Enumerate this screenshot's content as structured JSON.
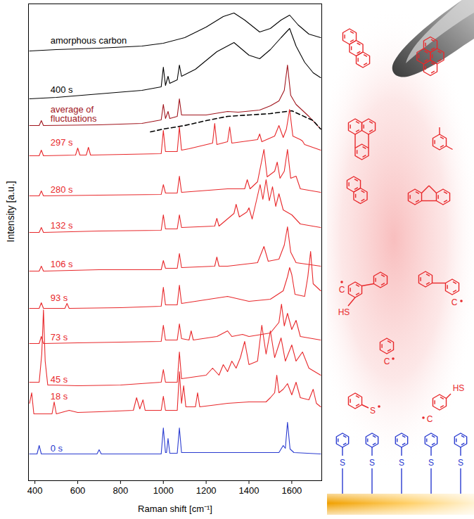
{
  "chart_data": {
    "type": "line",
    "xlabel": "Raman shift [cm⁻¹]",
    "ylabel": "Intensity [a.u.]",
    "xlim": [
      370,
      1740
    ],
    "xticks": [
      400,
      600,
      800,
      1000,
      1200,
      1400,
      1600
    ],
    "ylim": [
      0,
      678
    ],
    "yticks": [],
    "tick_labels": "x",
    "grid": false,
    "series": [
      {
        "name": "amorphous carbon",
        "color": "#000000",
        "x": [
          375,
          500,
          700,
          900,
          1000,
          1100,
          1200,
          1280,
          1330,
          1380,
          1450,
          1500,
          1550,
          1590,
          1630,
          1680,
          1735
        ],
        "values": [
          611,
          613,
          615,
          618,
          622,
          630,
          645,
          660,
          665,
          655,
          638,
          643,
          655,
          662,
          648,
          635,
          630
        ]
      },
      {
        "name": "400 s",
        "color": "#000000",
        "x": [
          375,
          500,
          700,
          900,
          990,
          1000,
          1010,
          1022,
          1030,
          1065,
          1075,
          1085,
          1150,
          1250,
          1330,
          1400,
          1450,
          1500,
          1550,
          1590,
          1620,
          1660,
          1700,
          1735
        ],
        "values": [
          543,
          545,
          550,
          555,
          560,
          588,
          562,
          575,
          565,
          570,
          591,
          575,
          585,
          610,
          623,
          605,
          600,
          613,
          630,
          643,
          618,
          595,
          580,
          573
        ]
      },
      {
        "name": "average of fluctuations",
        "color": "#a0141c",
        "x": [
          375,
          420,
          430,
          440,
          700,
          900,
          990,
          1000,
          1010,
          1022,
          1030,
          1065,
          1075,
          1085,
          1200,
          1300,
          1350,
          1450,
          1500,
          1540,
          1565,
          1580,
          1595,
          1620,
          1680,
          1735
        ],
        "values": [
          505,
          505,
          512,
          505,
          506,
          508,
          513,
          535,
          515,
          525,
          515,
          518,
          543,
          520,
          520,
          525,
          524,
          527,
          533,
          540,
          555,
          591,
          548,
          535,
          518,
          500
        ]
      },
      {
        "color": "#000000",
        "line_style": "dashed",
        "x": [
          940,
          1000,
          1100,
          1200,
          1300,
          1400,
          1500,
          1600,
          1700,
          1735
        ],
        "values": [
          496,
          500,
          505,
          512,
          518,
          520,
          522,
          526,
          512,
          500
        ]
      },
      {
        "name": "297 s",
        "color": "#e8282b",
        "x": [
          375,
          420,
          430,
          440,
          590,
          600,
          610,
          640,
          650,
          660,
          990,
          1000,
          1010,
          1065,
          1075,
          1085,
          1120,
          1230,
          1240,
          1250,
          1300,
          1310,
          1320,
          1440,
          1450,
          1460,
          1520,
          1540,
          1560,
          1575,
          1590,
          1605,
          1640,
          1650,
          1660,
          1735
        ],
        "values": [
          462,
          462,
          470,
          462,
          463,
          473,
          463,
          463,
          474,
          463,
          465,
          498,
          468,
          468,
          503,
          470,
          472,
          480,
          508,
          478,
          482,
          503,
          480,
          485,
          493,
          482,
          490,
          505,
          488,
          500,
          528,
          490,
          485,
          483,
          478,
          470
        ]
      },
      {
        "name": "280 s",
        "color": "#e8282b",
        "x": [
          375,
          420,
          430,
          440,
          700,
          990,
          1000,
          1010,
          1065,
          1075,
          1085,
          1300,
          1380,
          1392,
          1405,
          1440,
          1470,
          1485,
          1520,
          1532,
          1545,
          1565,
          1580,
          1595,
          1620,
          1640,
          1735
        ],
        "values": [
          405,
          405,
          412,
          405,
          406,
          407,
          421,
          409,
          409,
          433,
          410,
          415,
          415,
          428,
          415,
          425,
          471,
          432,
          440,
          453,
          430,
          440,
          471,
          430,
          433,
          415,
          410
        ]
      },
      {
        "name": "132 s",
        "color": "#e8282b",
        "x": [
          375,
          420,
          430,
          440,
          700,
          990,
          1000,
          1010,
          1065,
          1075,
          1085,
          1240,
          1250,
          1260,
          1330,
          1340,
          1355,
          1390,
          1400,
          1415,
          1440,
          1452,
          1465,
          1480,
          1495,
          1510,
          1525,
          1540,
          1560,
          1600,
          1640,
          1735
        ],
        "values": [
          353,
          353,
          360,
          353,
          355,
          356,
          378,
          358,
          358,
          378,
          360,
          362,
          373,
          362,
          380,
          393,
          375,
          382,
          388,
          372,
          405,
          421,
          400,
          428,
          398,
          418,
          390,
          408,
          385,
          378,
          365,
          360
        ]
      },
      {
        "name": "106 s",
        "color": "#e8282b",
        "x": [
          375,
          420,
          430,
          440,
          700,
          990,
          1000,
          1010,
          1065,
          1075,
          1085,
          1240,
          1250,
          1260,
          1300,
          1440,
          1470,
          1490,
          1540,
          1565,
          1580,
          1595,
          1620,
          1735
        ],
        "values": [
          298,
          298,
          305,
          298,
          300,
          300,
          313,
          302,
          302,
          323,
          303,
          305,
          318,
          305,
          305,
          310,
          333,
          312,
          315,
          335,
          361,
          325,
          310,
          305
        ]
      },
      {
        "name": "93 s",
        "color": "#e8282b",
        "x": [
          375,
          420,
          430,
          440,
          540,
          550,
          560,
          800,
          990,
          1000,
          1010,
          1065,
          1075,
          1085,
          1300,
          1400,
          1500,
          1560,
          1580,
          1590,
          1600,
          1615,
          1660,
          1675,
          1688,
          1700,
          1735
        ],
        "values": [
          245,
          245,
          253,
          245,
          245,
          252,
          245,
          246,
          248,
          275,
          250,
          250,
          278,
          252,
          262,
          255,
          258,
          270,
          290,
          303,
          293,
          265,
          262,
          290,
          326,
          280,
          270
        ]
      },
      {
        "name": "73 s",
        "color": "#e8282b",
        "x": [
          375,
          420,
          430,
          440,
          600,
          800,
          990,
          1000,
          1010,
          1065,
          1075,
          1085,
          1120,
          1130,
          1140,
          1250,
          1300,
          1320,
          1370,
          1400,
          1500,
          1540,
          1552,
          1565,
          1580,
          1600,
          1620,
          1640,
          1735
        ],
        "values": [
          195,
          195,
          205,
          195,
          196,
          197,
          198,
          221,
          200,
          200,
          223,
          202,
          200,
          213,
          200,
          205,
          213,
          205,
          208,
          205,
          210,
          225,
          251,
          220,
          238,
          215,
          228,
          205,
          200
        ]
      },
      {
        "name": "45 s",
        "color": "#e8282b",
        "x": [
          375,
          420,
          432,
          440,
          448,
          460,
          480,
          600,
          800,
          990,
          1000,
          1010,
          1065,
          1075,
          1085,
          1200,
          1230,
          1260,
          1280,
          1300,
          1320,
          1340,
          1360,
          1380,
          1400,
          1440,
          1460,
          1480,
          1500,
          1520,
          1550,
          1570,
          1600,
          1620,
          1650,
          1680,
          1735
        ],
        "values": [
          140,
          140,
          180,
          243,
          170,
          136,
          136,
          135,
          136,
          140,
          158,
          140,
          140,
          183,
          145,
          150,
          160,
          150,
          165,
          155,
          170,
          160,
          175,
          198,
          165,
          170,
          221,
          180,
          213,
          175,
          203,
          170,
          193,
          170,
          183,
          160,
          150
        ]
      },
      {
        "name": "18 s",
        "color": "#e8282b",
        "x": [
          375,
          385,
          395,
          480,
          490,
          500,
          560,
          600,
          700,
          860,
          875,
          890,
          905,
          915,
          990,
          1000,
          1010,
          1065,
          1075,
          1085,
          1095,
          1105,
          1150,
          1160,
          1170,
          1250,
          1300,
          1400,
          1480,
          1500,
          1520,
          1530,
          1540,
          1560,
          1580,
          1600,
          1620,
          1640,
          1680,
          1700,
          1715,
          1735
        ],
        "values": [
          110,
          125,
          95,
          95,
          112,
          95,
          100,
          97,
          98,
          100,
          118,
          102,
          115,
          100,
          100,
          120,
          100,
          100,
          155,
          110,
          135,
          105,
          105,
          125,
          105,
          108,
          110,
          112,
          112,
          118,
          125,
          150,
          125,
          130,
          138,
          122,
          140,
          118,
          115,
          130,
          110,
          105
        ]
      },
      {
        "name": "0 s",
        "color": "#2a3bd0",
        "x": [
          375,
          410,
          420,
          430,
          690,
          700,
          710,
          990,
          1000,
          1010,
          1015,
          1022,
          1030,
          1065,
          1075,
          1085,
          1540,
          1560,
          1570,
          1580,
          1592,
          1610,
          1735
        ],
        "values": [
          38,
          38,
          50,
          38,
          38,
          44,
          38,
          38,
          75,
          40,
          40,
          60,
          39,
          39,
          75,
          40,
          40,
          50,
          46,
          83,
          45,
          40,
          38
        ]
      }
    ]
  },
  "schematic": {
    "red_texts": [
      "C",
      "HS",
      "C",
      "C",
      "S",
      "HS",
      "C"
    ],
    "blue_texts": [
      "S",
      "S",
      "S",
      "S",
      "S"
    ]
  }
}
